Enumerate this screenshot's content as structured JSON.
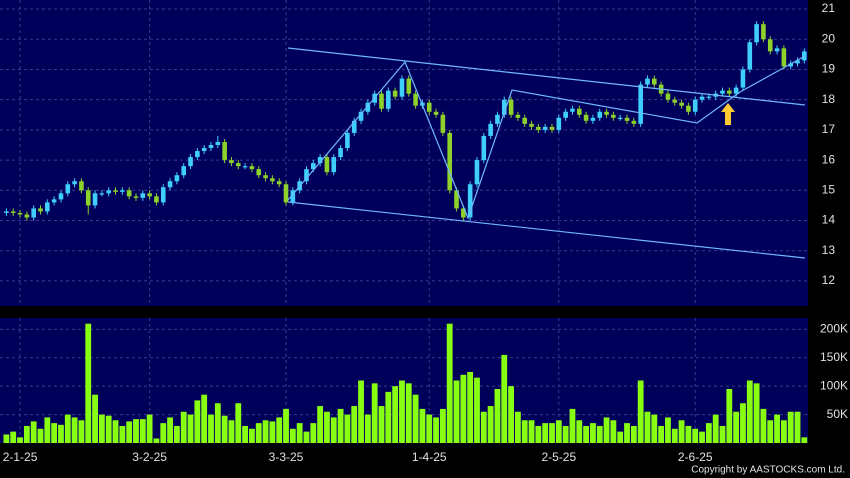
{
  "chart_data": {
    "type": "candlestick",
    "categories": [
      null,
      null,
      "2-1-25",
      null,
      null,
      null,
      null,
      null,
      null,
      null,
      null,
      null,
      null,
      null,
      null,
      null,
      null,
      null,
      null,
      null,
      null,
      "3-2-25",
      null,
      null,
      null,
      null,
      null,
      null,
      null,
      null,
      null,
      null,
      null,
      null,
      null,
      null,
      null,
      null,
      null,
      null,
      null,
      "3-3-25",
      null,
      null,
      null,
      null,
      null,
      null,
      null,
      null,
      null,
      null,
      null,
      null,
      null,
      null,
      null,
      null,
      null,
      null,
      null,
      null,
      "1-4-25",
      null,
      null,
      null,
      null,
      null,
      null,
      null,
      null,
      null,
      null,
      null,
      null,
      null,
      null,
      null,
      null,
      null,
      null,
      "2-5-25",
      null,
      null,
      null,
      null,
      null,
      null,
      null,
      null,
      null,
      null,
      null,
      null,
      null,
      null,
      null,
      null,
      null,
      null,
      null,
      "2-6-25",
      null,
      null,
      null,
      null,
      null,
      null,
      null,
      null,
      null,
      null,
      null,
      null,
      null,
      null,
      null,
      null
    ],
    "open": [
      14.25,
      14.3,
      14.25,
      14.2,
      14.1,
      14.4,
      14.3,
      14.6,
      14.7,
      14.9,
      15.2,
      15.3,
      15.0,
      14.5,
      14.9,
      14.9,
      15.0,
      14.95,
      15.0,
      14.8,
      14.75,
      14.9,
      14.8,
      14.6,
      15.1,
      15.3,
      15.5,
      15.8,
      16.1,
      16.3,
      16.4,
      16.5,
      16.6,
      16.0,
      15.9,
      15.8,
      15.8,
      15.7,
      15.5,
      15.4,
      15.3,
      15.2,
      14.6,
      15.0,
      15.3,
      15.7,
      15.9,
      16.1,
      15.6,
      16.1,
      16.4,
      16.9,
      17.3,
      17.6,
      17.9,
      18.2,
      17.7,
      18.3,
      18.1,
      18.7,
      18.2,
      17.8,
      17.9,
      17.6,
      17.5,
      16.9,
      15.0,
      14.4,
      14.1,
      15.2,
      16.0,
      16.8,
      17.2,
      17.5,
      18.0,
      17.5,
      17.4,
      17.2,
      17.1,
      17.0,
      17.1,
      17.0,
      17.4,
      17.6,
      17.7,
      17.5,
      17.3,
      17.4,
      17.6,
      17.5,
      17.4,
      17.4,
      17.3,
      17.2,
      18.5,
      18.7,
      18.5,
      18.2,
      18.0,
      17.9,
      17.8,
      17.6,
      18.0,
      18.1,
      18.1,
      18.2,
      18.3,
      18.2,
      18.4,
      19.0,
      19.9,
      20.5,
      20.0,
      19.6,
      19.7,
      19.1,
      19.2,
      19.3
    ],
    "high": [
      14.4,
      14.4,
      14.35,
      14.3,
      14.5,
      14.5,
      14.7,
      14.8,
      15.0,
      15.3,
      15.4,
      15.4,
      15.1,
      15.0,
      15.0,
      15.1,
      15.1,
      15.1,
      15.1,
      14.9,
      15.0,
      15.0,
      14.9,
      15.2,
      15.4,
      15.6,
      15.9,
      16.2,
      16.4,
      16.5,
      16.6,
      16.8,
      16.7,
      16.1,
      16.0,
      15.9,
      15.9,
      15.8,
      15.6,
      15.5,
      15.4,
      15.3,
      15.1,
      15.4,
      15.8,
      16.0,
      16.2,
      16.2,
      16.2,
      16.5,
      17.0,
      17.4,
      17.7,
      18.0,
      18.3,
      18.3,
      18.4,
      18.4,
      18.8,
      18.8,
      18.3,
      18.0,
      18.0,
      17.7,
      17.6,
      17.0,
      15.1,
      14.5,
      15.3,
      16.1,
      16.9,
      17.3,
      17.6,
      18.1,
      18.1,
      17.6,
      17.5,
      17.3,
      17.2,
      17.2,
      17.2,
      17.5,
      17.7,
      17.8,
      17.8,
      17.6,
      17.5,
      17.7,
      17.7,
      17.6,
      17.5,
      17.5,
      17.4,
      18.6,
      18.8,
      18.8,
      18.6,
      18.3,
      18.1,
      18.0,
      17.9,
      18.1,
      18.2,
      18.2,
      18.3,
      18.4,
      18.4,
      18.5,
      19.1,
      20.0,
      20.6,
      20.6,
      20.1,
      19.8,
      19.8,
      19.3,
      19.4,
      19.7
    ],
    "low": [
      14.15,
      14.15,
      14.1,
      14.0,
      14.0,
      14.2,
      14.2,
      14.5,
      14.6,
      14.8,
      15.1,
      14.9,
      14.2,
      14.4,
      14.8,
      14.8,
      14.85,
      14.85,
      14.7,
      14.65,
      14.65,
      14.7,
      14.5,
      14.5,
      15.0,
      15.2,
      15.4,
      15.7,
      16.0,
      16.2,
      16.3,
      16.4,
      15.9,
      15.8,
      15.7,
      15.7,
      15.6,
      15.4,
      15.3,
      15.2,
      15.1,
      14.5,
      14.5,
      14.9,
      15.2,
      15.6,
      15.8,
      15.5,
      15.5,
      16.0,
      16.3,
      16.8,
      17.2,
      17.5,
      17.8,
      17.6,
      17.6,
      18.0,
      18.0,
      18.1,
      17.7,
      17.7,
      17.5,
      17.4,
      16.8,
      14.9,
      14.3,
      14.0,
      14.0,
      15.1,
      15.9,
      16.7,
      17.1,
      17.4,
      17.4,
      17.3,
      17.1,
      17.0,
      16.9,
      16.9,
      16.9,
      16.9,
      17.3,
      17.5,
      17.4,
      17.2,
      17.2,
      17.3,
      17.4,
      17.3,
      17.3,
      17.2,
      17.1,
      17.1,
      18.4,
      18.4,
      18.1,
      17.9,
      17.8,
      17.7,
      17.5,
      17.5,
      17.9,
      18.0,
      18.0,
      18.1,
      18.1,
      18.1,
      18.3,
      18.9,
      19.8,
      19.9,
      19.5,
      19.5,
      19.0,
      19.0,
      19.1,
      19.2
    ],
    "close": [
      14.3,
      14.25,
      14.2,
      14.1,
      14.4,
      14.3,
      14.6,
      14.7,
      14.9,
      15.2,
      15.3,
      15.0,
      14.5,
      14.9,
      14.9,
      15.0,
      14.95,
      15.0,
      14.8,
      14.75,
      14.9,
      14.8,
      14.6,
      15.1,
      15.3,
      15.5,
      15.8,
      16.1,
      16.3,
      16.4,
      16.5,
      16.6,
      16.0,
      15.9,
      15.8,
      15.8,
      15.7,
      15.5,
      15.4,
      15.3,
      15.2,
      14.6,
      15.0,
      15.3,
      15.7,
      15.9,
      16.1,
      15.6,
      16.1,
      16.4,
      16.9,
      17.3,
      17.6,
      17.9,
      18.2,
      17.7,
      18.3,
      18.1,
      18.7,
      18.2,
      17.8,
      17.9,
      17.6,
      17.5,
      16.9,
      15.0,
      14.4,
      14.1,
      15.2,
      16.0,
      16.8,
      17.2,
      17.5,
      18.0,
      17.5,
      17.4,
      17.2,
      17.1,
      17.0,
      17.1,
      17.0,
      17.4,
      17.6,
      17.7,
      17.5,
      17.3,
      17.4,
      17.6,
      17.5,
      17.4,
      17.4,
      17.3,
      17.2,
      18.5,
      18.7,
      18.5,
      18.2,
      18.0,
      17.9,
      17.8,
      17.6,
      18.0,
      18.1,
      18.1,
      18.2,
      18.3,
      18.2,
      18.4,
      19.0,
      19.9,
      20.5,
      20.0,
      19.6,
      19.7,
      19.1,
      19.2,
      19.3,
      19.6
    ],
    "volume": [
      15000,
      20000,
      10000,
      30000,
      38000,
      25000,
      45000,
      35000,
      32000,
      50000,
      45000,
      40000,
      210000,
      85000,
      50000,
      48000,
      40000,
      30000,
      38000,
      42000,
      42000,
      50000,
      8000,
      35000,
      45000,
      30000,
      55000,
      50000,
      75000,
      85000,
      50000,
      70000,
      48000,
      40000,
      70000,
      30000,
      25000,
      35000,
      40000,
      38000,
      45000,
      60000,
      25000,
      35000,
      20000,
      35000,
      65000,
      55000,
      45000,
      60000,
      50000,
      65000,
      110000,
      50000,
      105000,
      65000,
      90000,
      100000,
      110000,
      105000,
      85000,
      60000,
      50000,
      45000,
      60000,
      210000,
      110000,
      120000,
      125000,
      115000,
      55000,
      65000,
      95000,
      155000,
      100000,
      55000,
      40000,
      40000,
      30000,
      35000,
      35000,
      40000,
      30000,
      60000,
      40000,
      30000,
      35000,
      30000,
      45000,
      40000,
      20000,
      35000,
      30000,
      110000,
      55000,
      50000,
      30000,
      45000,
      25000,
      40000,
      30000,
      25000,
      20000,
      35000,
      50000,
      30000,
      95000,
      55000,
      70000,
      110000,
      105000,
      60000,
      40000,
      50000,
      40000,
      55000,
      55000,
      10000
    ],
    "ylim": [
      11.17,
      21.3
    ],
    "yticks": [
      12,
      13,
      14,
      15,
      16,
      17,
      18,
      19,
      20,
      21
    ],
    "volume_ylim": [
      0,
      220000
    ],
    "volume_yticks": [
      {
        "value": 50000,
        "label": "50K"
      },
      {
        "value": 100000,
        "label": "100K"
      },
      {
        "value": 150000,
        "label": "150K"
      },
      {
        "value": 200000,
        "label": "200K"
      }
    ],
    "up_color": "#3fcfff",
    "down_color": "#8ed12a",
    "volume_color": "#88ff11",
    "grid": true
  },
  "footer": "Copyright by AASTOCKS.com Ltd."
}
